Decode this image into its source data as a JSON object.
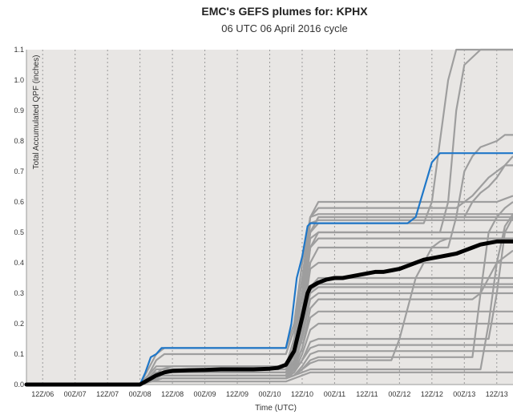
{
  "chart_data": {
    "type": "line",
    "title": "EMC's GEFS plumes for: KPHX",
    "subtitle": "06 UTC 06 April 2016 cycle",
    "xlabel": "Time (UTC)",
    "ylabel": "Total Accumulated QPF (inches)",
    "ylim": [
      0,
      1.1
    ],
    "xlim_hours": [
      0,
      180
    ],
    "y_ticks": [
      "0.0",
      "0.1",
      "0.2",
      "0.3",
      "0.4",
      "0.5",
      "0.6",
      "0.7",
      "0.8",
      "0.9",
      "1.0",
      "1.1"
    ],
    "x_ticks": [
      {
        "hour": 6,
        "label": "12Z/06"
      },
      {
        "hour": 18,
        "label": "00Z/07"
      },
      {
        "hour": 30,
        "label": "12Z/07"
      },
      {
        "hour": 42,
        "label": "00Z/08"
      },
      {
        "hour": 54,
        "label": "12Z/08"
      },
      {
        "hour": 66,
        "label": "00Z/09"
      },
      {
        "hour": 78,
        "label": "12Z/09"
      },
      {
        "hour": 90,
        "label": "00Z/10"
      },
      {
        "hour": 102,
        "label": "12Z/10"
      },
      {
        "hour": 114,
        "label": "00Z/11"
      },
      {
        "hour": 126,
        "label": "12Z/11"
      },
      {
        "hour": 138,
        "label": "00Z/12"
      },
      {
        "hour": 150,
        "label": "12Z/12"
      },
      {
        "hour": 162,
        "label": "00Z/13"
      },
      {
        "hour": 174,
        "label": "12Z/13"
      }
    ],
    "grid": true,
    "colors": {
      "members": "#9e9e9e",
      "highlight": "#1f77c8",
      "mean": "#000000",
      "background": "#e8e6e4"
    },
    "members": [
      {
        "x": [
          0,
          42,
          45,
          48,
          51,
          54,
          96,
          99,
          102,
          105,
          108,
          180
        ],
        "y": [
          0,
          0,
          0.05,
          0.1,
          0.12,
          0.12,
          0.12,
          0.2,
          0.4,
          0.55,
          0.56,
          0.56
        ]
      },
      {
        "x": [
          0,
          42,
          45,
          48,
          51,
          96,
          99,
          102,
          105,
          108,
          180
        ],
        "y": [
          0,
          0,
          0.03,
          0.08,
          0.1,
          0.1,
          0.18,
          0.35,
          0.5,
          0.55,
          0.55
        ]
      },
      {
        "x": [
          0,
          42,
          46,
          50,
          54,
          96,
          99,
          102,
          105,
          108,
          147,
          150,
          153,
          156,
          159,
          162,
          180
        ],
        "y": [
          0,
          0,
          0.02,
          0.05,
          0.06,
          0.06,
          0.15,
          0.3,
          0.5,
          0.53,
          0.53,
          0.6,
          0.8,
          1.0,
          1.1,
          1.1,
          1.1
        ]
      },
      {
        "x": [
          0,
          42,
          45,
          48,
          96,
          99,
          102,
          105,
          108,
          153,
          156,
          159,
          162,
          168,
          174,
          180
        ],
        "y": [
          0,
          0,
          0.02,
          0.04,
          0.04,
          0.1,
          0.25,
          0.45,
          0.5,
          0.5,
          0.6,
          0.9,
          1.05,
          1.1,
          1.1,
          1.1
        ]
      },
      {
        "x": [
          0,
          42,
          46,
          50,
          96,
          99,
          102,
          105,
          108,
          156,
          159,
          162,
          165,
          168,
          174,
          177,
          180
        ],
        "y": [
          0,
          0,
          0.01,
          0.03,
          0.03,
          0.08,
          0.2,
          0.4,
          0.45,
          0.45,
          0.55,
          0.7,
          0.75,
          0.78,
          0.8,
          0.82,
          0.82
        ]
      },
      {
        "x": [
          0,
          42,
          45,
          48,
          96,
          99,
          102,
          105,
          108,
          162,
          165,
          168,
          171,
          174,
          177,
          180
        ],
        "y": [
          0,
          0,
          0.02,
          0.05,
          0.05,
          0.12,
          0.3,
          0.5,
          0.55,
          0.55,
          0.6,
          0.63,
          0.65,
          0.68,
          0.72,
          0.75
        ]
      },
      {
        "x": [
          0,
          42,
          46,
          50,
          96,
          99,
          102,
          105,
          108,
          159,
          162,
          165,
          168,
          171,
          174,
          177,
          180
        ],
        "y": [
          0,
          0,
          0.02,
          0.04,
          0.04,
          0.1,
          0.3,
          0.55,
          0.58,
          0.58,
          0.6,
          0.62,
          0.65,
          0.68,
          0.7,
          0.72,
          0.72
        ]
      },
      {
        "x": [
          0,
          42,
          45,
          48,
          96,
          99,
          102,
          105,
          108,
          174,
          177,
          180
        ],
        "y": [
          0,
          0,
          0.03,
          0.06,
          0.06,
          0.15,
          0.35,
          0.55,
          0.6,
          0.6,
          0.61,
          0.62
        ]
      },
      {
        "x": [
          0,
          42,
          46,
          50,
          96,
          99,
          102,
          105,
          108,
          180
        ],
        "y": [
          0,
          0,
          0.02,
          0.05,
          0.05,
          0.12,
          0.3,
          0.53,
          0.54,
          0.54
        ]
      },
      {
        "x": [
          0,
          42,
          46,
          50,
          96,
          99,
          102,
          105,
          108,
          180
        ],
        "y": [
          0,
          0,
          0.01,
          0.03,
          0.03,
          0.1,
          0.25,
          0.48,
          0.5,
          0.5
        ]
      },
      {
        "x": [
          0,
          42,
          46,
          50,
          96,
          99,
          102,
          105,
          108,
          180
        ],
        "y": [
          0,
          0,
          0.02,
          0.04,
          0.04,
          0.1,
          0.22,
          0.45,
          0.48,
          0.48
        ]
      },
      {
        "x": [
          0,
          42,
          46,
          50,
          96,
          99,
          102,
          105,
          108,
          180
        ],
        "y": [
          0,
          0,
          0.01,
          0.02,
          0.02,
          0.08,
          0.2,
          0.38,
          0.4,
          0.4
        ]
      },
      {
        "x": [
          0,
          42,
          46,
          50,
          96,
          99,
          102,
          105,
          108,
          180
        ],
        "y": [
          0,
          0,
          0.01,
          0.03,
          0.03,
          0.08,
          0.18,
          0.32,
          0.35,
          0.35
        ]
      },
      {
        "x": [
          0,
          42,
          46,
          50,
          96,
          99,
          102,
          105,
          108,
          180
        ],
        "y": [
          0,
          0,
          0.01,
          0.02,
          0.02,
          0.06,
          0.15,
          0.28,
          0.3,
          0.3
        ]
      },
      {
        "x": [
          0,
          42,
          46,
          50,
          96,
          99,
          102,
          105,
          108,
          180
        ],
        "y": [
          0,
          0,
          0.01,
          0.03,
          0.03,
          0.07,
          0.16,
          0.31,
          0.33,
          0.33
        ]
      },
      {
        "x": [
          0,
          42,
          46,
          50,
          96,
          99,
          102,
          105,
          108,
          180
        ],
        "y": [
          0,
          0,
          0.02,
          0.03,
          0.03,
          0.08,
          0.18,
          0.3,
          0.32,
          0.32
        ]
      },
      {
        "x": [
          0,
          42,
          46,
          50,
          96,
          99,
          102,
          105,
          108,
          180
        ],
        "y": [
          0,
          0,
          0.01,
          0.02,
          0.02,
          0.06,
          0.12,
          0.22,
          0.24,
          0.24
        ]
      },
      {
        "x": [
          0,
          42,
          46,
          50,
          96,
          99,
          102,
          105,
          108,
          165,
          168,
          171,
          174,
          177,
          180
        ],
        "y": [
          0,
          0,
          0.01,
          0.02,
          0.02,
          0.05,
          0.12,
          0.25,
          0.28,
          0.28,
          0.3,
          0.35,
          0.4,
          0.42,
          0.44
        ]
      },
      {
        "x": [
          0,
          42,
          46,
          50,
          96,
          99,
          102,
          105,
          108,
          171,
          174,
          177,
          180
        ],
        "y": [
          0,
          0,
          0.01,
          0.02,
          0.02,
          0.04,
          0.08,
          0.14,
          0.15,
          0.15,
          0.3,
          0.5,
          0.55
        ]
      },
      {
        "x": [
          0,
          42,
          46,
          50,
          96,
          99,
          102,
          105,
          108,
          180
        ],
        "y": [
          0,
          0,
          0.01,
          0.02,
          0.02,
          0.04,
          0.08,
          0.12,
          0.13,
          0.13
        ]
      },
      {
        "x": [
          0,
          42,
          46,
          50,
          96,
          99,
          102,
          105,
          108,
          180
        ],
        "y": [
          0,
          0,
          0.01,
          0.02,
          0.02,
          0.03,
          0.06,
          0.1,
          0.11,
          0.11
        ]
      },
      {
        "x": [
          0,
          42,
          46,
          50,
          96,
          99,
          102,
          105,
          108,
          165,
          168,
          171,
          174,
          177,
          180
        ],
        "y": [
          0,
          0,
          0.01,
          0.02,
          0.02,
          0.03,
          0.05,
          0.08,
          0.09,
          0.09,
          0.3,
          0.5,
          0.55,
          0.58,
          0.6
        ]
      },
      {
        "x": [
          0,
          42,
          46,
          50,
          96,
          99,
          102,
          105,
          108,
          135,
          138,
          141,
          144,
          147,
          150,
          153,
          156,
          180
        ],
        "y": [
          0,
          0,
          0.01,
          0.02,
          0.02,
          0.03,
          0.05,
          0.07,
          0.08,
          0.08,
          0.15,
          0.25,
          0.35,
          0.4,
          0.45,
          0.47,
          0.48,
          0.48
        ]
      },
      {
        "x": [
          0,
          42,
          46,
          50,
          96,
          99,
          102,
          105,
          108,
          168,
          171,
          174,
          177,
          180
        ],
        "y": [
          0,
          0,
          0.01,
          0.02,
          0.02,
          0.03,
          0.04,
          0.05,
          0.05,
          0.05,
          0.2,
          0.4,
          0.52,
          0.56
        ]
      },
      {
        "x": [
          0,
          42,
          46,
          50,
          96,
          99,
          102,
          105,
          108,
          180
        ],
        "y": [
          0,
          0,
          0.01,
          0.01,
          0.01,
          0.02,
          0.03,
          0.04,
          0.04,
          0.04
        ]
      },
      {
        "x": [
          0,
          42,
          46,
          50,
          96,
          99,
          102,
          105,
          108,
          180
        ],
        "y": [
          0,
          0,
          0.01,
          0.02,
          0.02,
          0.04,
          0.1,
          0.18,
          0.2,
          0.2
        ]
      }
    ],
    "highlight_series": {
      "x": [
        0,
        42,
        44,
        46,
        48,
        50,
        96,
        98,
        100,
        102,
        104,
        105,
        106,
        108,
        141,
        144,
        147,
        150,
        153,
        156,
        162,
        180
      ],
      "y": [
        0,
        0,
        0.04,
        0.09,
        0.1,
        0.12,
        0.12,
        0.2,
        0.35,
        0.42,
        0.52,
        0.53,
        0.53,
        0.53,
        0.53,
        0.55,
        0.64,
        0.73,
        0.76,
        0.76,
        0.76,
        0.76
      ]
    },
    "mean_series": {
      "x": [
        0,
        42,
        44,
        46,
        48,
        51,
        54,
        60,
        66,
        72,
        78,
        84,
        90,
        93,
        96,
        99,
        102,
        104,
        105,
        108,
        111,
        114,
        117,
        120,
        123,
        126,
        129,
        132,
        135,
        138,
        141,
        144,
        147,
        150,
        153,
        156,
        159,
        162,
        165,
        168,
        171,
        174,
        177,
        180
      ],
      "y": [
        0,
        0,
        0.01,
        0.02,
        0.03,
        0.04,
        0.045,
        0.047,
        0.048,
        0.05,
        0.05,
        0.05,
        0.052,
        0.055,
        0.065,
        0.11,
        0.22,
        0.3,
        0.32,
        0.335,
        0.345,
        0.35,
        0.35,
        0.355,
        0.36,
        0.365,
        0.37,
        0.37,
        0.375,
        0.38,
        0.39,
        0.4,
        0.41,
        0.415,
        0.42,
        0.425,
        0.43,
        0.44,
        0.45,
        0.46,
        0.465,
        0.47,
        0.47,
        0.47
      ]
    }
  }
}
